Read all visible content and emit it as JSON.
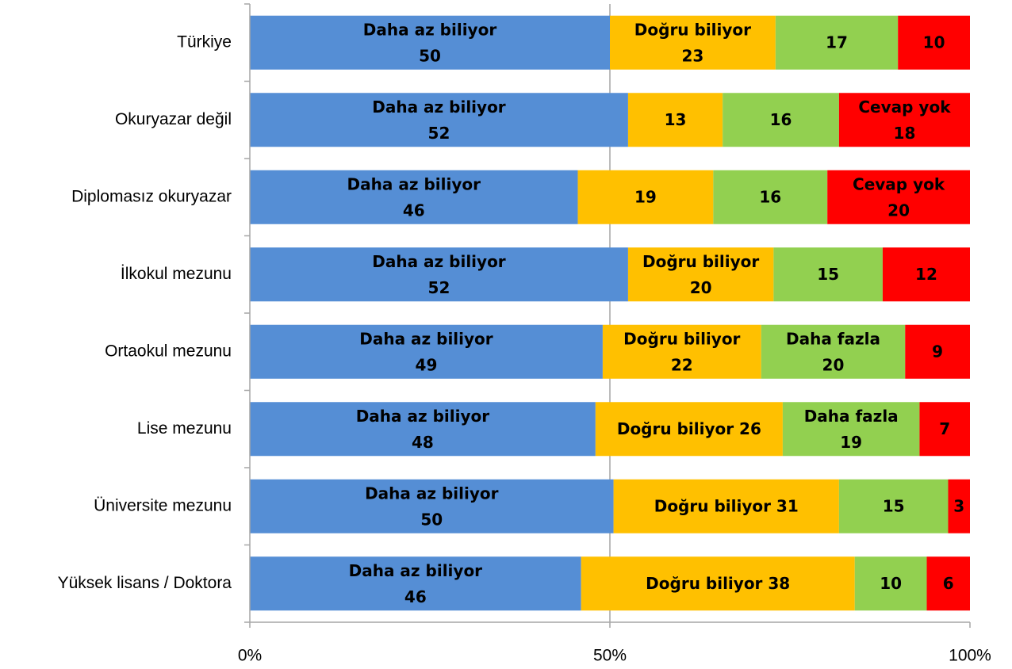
{
  "chart_data": {
    "type": "bar",
    "orientation": "horizontal",
    "stacked": "percent",
    "categories": [
      "Türkiye",
      "Okuryazar değil",
      "Diplomasız okuryazar",
      "İlkokul mezunu",
      "Ortaokul mezunu",
      "Lise mezunu",
      "Üniversite mezunu",
      "Yüksek lisans / Doktora"
    ],
    "series": [
      {
        "name": "Daha az biliyor",
        "color": "#558ed5",
        "values": [
          50,
          52,
          46,
          52,
          49,
          48,
          50,
          46
        ],
        "value_labels": [
          "Daha az biliyor\n50",
          "Daha az biliyor\n52",
          "Daha az biliyor\n46",
          "Daha az biliyor\n52",
          "Daha az biliyor\n49",
          "Daha az biliyor\n48",
          "Daha az biliyor\n50",
          "Daha az biliyor\n46"
        ]
      },
      {
        "name": "Doğru biliyor",
        "color": "#ffc000",
        "values": [
          23,
          13,
          19,
          20,
          22,
          26,
          31,
          38
        ],
        "value_labels": [
          "Doğru biliyor\n23",
          "13",
          "19",
          "Doğru biliyor\n20",
          "Doğru biliyor\n22",
          "Doğru biliyor 26",
          "Doğru biliyor 31",
          "Doğru biliyor 38"
        ]
      },
      {
        "name": "Daha fazla",
        "color": "#92d050",
        "values": [
          17,
          16,
          16,
          15,
          20,
          19,
          15,
          10
        ],
        "value_labels": [
          "17",
          "16",
          "16",
          "15",
          "Daha fazla\n20",
          "Daha fazla\n19",
          "15",
          "10"
        ]
      },
      {
        "name": "Cevap yok",
        "color": "#ff0000",
        "values": [
          10,
          18,
          20,
          12,
          9,
          7,
          3,
          6
        ],
        "value_labels": [
          "10",
          "Cevap yok\n18",
          "Cevap yok\n20",
          "12",
          "9",
          "7",
          "3",
          "6"
        ]
      }
    ],
    "xlim": [
      0,
      100
    ],
    "xticks": [
      {
        "value": 0,
        "label": "0%"
      },
      {
        "value": 50,
        "label": "50%"
      },
      {
        "value": 100,
        "label": "100%"
      }
    ],
    "grid": true
  }
}
